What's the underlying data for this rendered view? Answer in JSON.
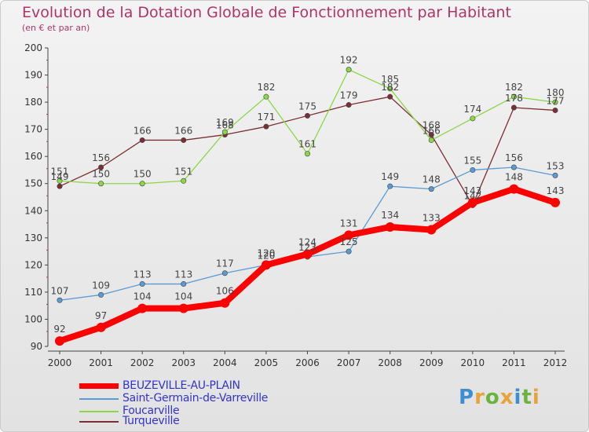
{
  "title": "Evolution de la Dotation Globale de Fonctionnement par Habitant",
  "subtitle": "(en € et par an)",
  "logo": "Proxiti",
  "chart_data": {
    "type": "line",
    "x": [
      "2000",
      "2001",
      "2002",
      "2003",
      "2004",
      "2005",
      "2006",
      "2007",
      "2008",
      "2009",
      "2010",
      "2011",
      "2012"
    ],
    "ylim": [
      90,
      200
    ],
    "yticks": [
      90,
      100,
      110,
      120,
      130,
      140,
      150,
      160,
      170,
      180,
      190,
      200
    ],
    "grid": false,
    "legend_position": "bottom-left",
    "series": [
      {
        "name": "BEUZEVILLE-AU-PLAIN",
        "color": "#ff0000",
        "values": [
          92,
          97,
          104,
          104,
          106,
          120,
          124,
          131,
          134,
          133,
          143,
          148,
          143
        ]
      },
      {
        "name": "Saint-Germain-de-Varreville",
        "color": "#5b9bd5",
        "values": [
          107,
          109,
          113,
          113,
          117,
          120,
          123,
          125,
          149,
          148,
          155,
          156,
          153
        ]
      },
      {
        "name": "Foucarville",
        "color": "#8cd64a",
        "values": [
          151,
          150,
          150,
          151,
          169,
          182,
          161,
          192,
          185,
          166,
          174,
          182,
          180
        ]
      },
      {
        "name": "Turqueville",
        "color": "#7a2f35",
        "values": [
          149,
          156,
          166,
          166,
          168,
          171,
          175,
          179,
          182,
          168,
          142,
          178,
          177
        ]
      }
    ]
  }
}
